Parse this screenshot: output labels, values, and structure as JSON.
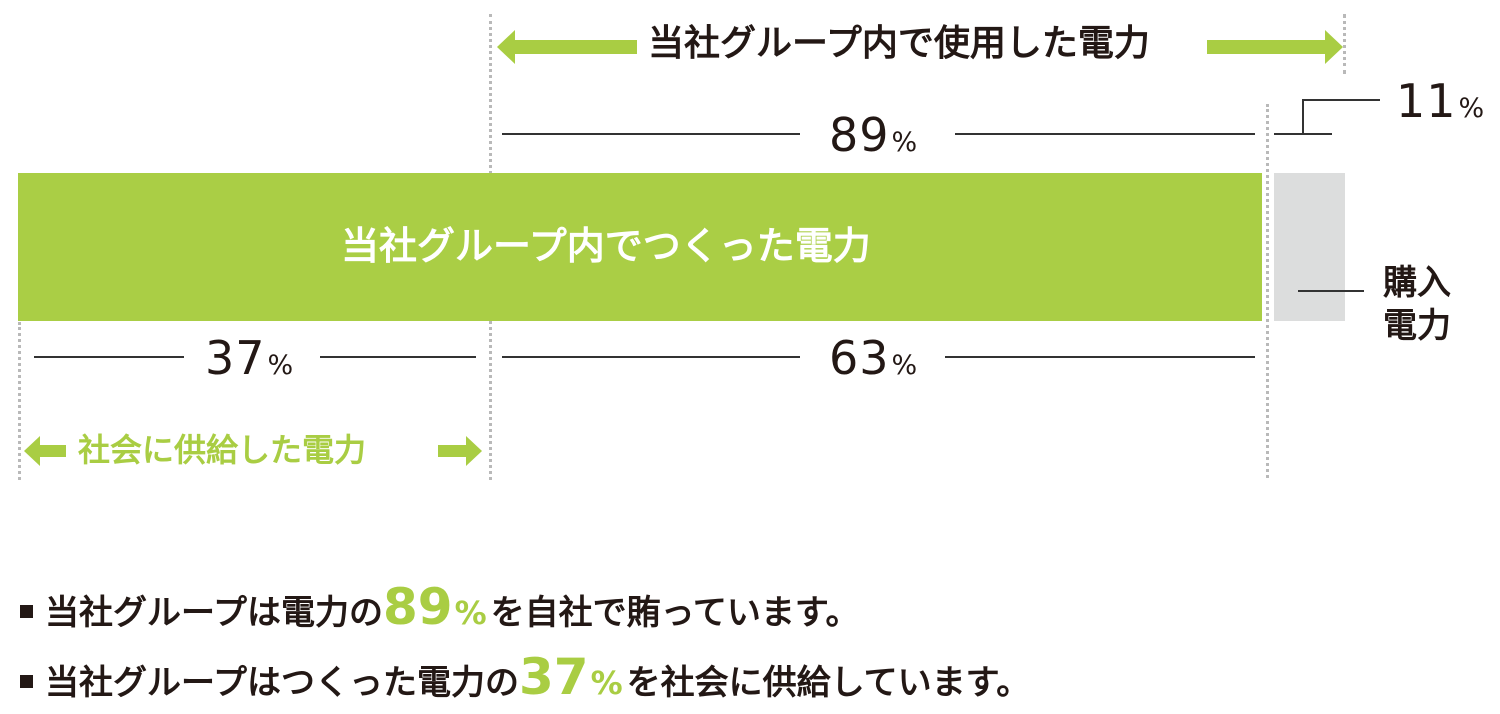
{
  "labels": {
    "used_internal": "当社グループ内で使用した電力",
    "produced_internal": "当社グループ内でつくった電力",
    "supplied_society": "社会に供給した電力",
    "purchased_line1": "購入",
    "purchased_line2": "電力"
  },
  "percent": {
    "used": "89",
    "purchased": "11",
    "supplied": "37",
    "self_used": "63",
    "unit": "%"
  },
  "notes": [
    {
      "before": "当社グループは電力の",
      "value": "89",
      "unit": "%",
      "after": "を自社で賄っています。"
    },
    {
      "before": "当社グループはつくった電力の",
      "value": "37",
      "unit": "%",
      "after": "を社会に供給しています。"
    }
  ],
  "colors": {
    "green": "#aace45",
    "gray": "#dcdddd",
    "text": "#231815",
    "dotted": "#b9b9b9"
  }
}
